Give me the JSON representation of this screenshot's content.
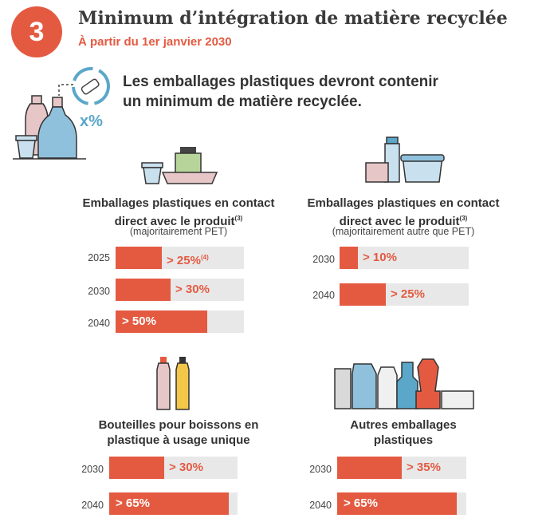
{
  "header": {
    "number": "3",
    "title": "Minimum d’intégration de matière recyclée",
    "subtitle": "À partir du 1er janvier 2030",
    "recycle_label": "x%",
    "intro_line1": "Les emballages plastiques devront contenir",
    "intro_line2": "un minimum de matière recyclée."
  },
  "sections": [
    {
      "title_line1": "Emballages plastiques en contact",
      "title_line2": "direct avec le produit",
      "title_note": "(3)",
      "subtitle": "(majoritairement PET)",
      "rows": [
        {
          "year": "2025",
          "label": "> 25%",
          "note": "(4)",
          "value": 25
        },
        {
          "year": "2030",
          "label": "> 30%",
          "note": "",
          "value": 30
        },
        {
          "year": "2040",
          "label": "> 50%",
          "note": "",
          "value": 50
        }
      ]
    },
    {
      "title_line1": "Emballages plastiques en contact",
      "title_line2": "direct avec le produit",
      "title_note": "(3)",
      "subtitle": "(majoritairement autre que PET)",
      "rows": [
        {
          "year": "2030",
          "label": "> 10%",
          "note": "",
          "value": 10
        },
        {
          "year": "2040",
          "label": "> 25%",
          "note": "",
          "value": 25
        }
      ]
    },
    {
      "title_line1": "Bouteilles pour boissons en",
      "title_line2": "plastique à usage unique",
      "rows": [
        {
          "year": "2030",
          "label": "> 30%",
          "note": "",
          "value": 30
        },
        {
          "year": "2040",
          "label": "> 65%",
          "note": "",
          "value": 65
        }
      ]
    },
    {
      "title_line1": "Autres emballages",
      "title_line2": "plastiques",
      "rows": [
        {
          "year": "2030",
          "label": "> 35%",
          "note": "",
          "value": 35
        },
        {
          "year": "2040",
          "label": "> 65%",
          "note": "",
          "value": 65
        }
      ]
    }
  ],
  "colors": {
    "accent": "#e45a41",
    "bar_bg": "#e8e8e8",
    "text": "#3a3a3a",
    "icon_blue": "#5aa7c9"
  }
}
